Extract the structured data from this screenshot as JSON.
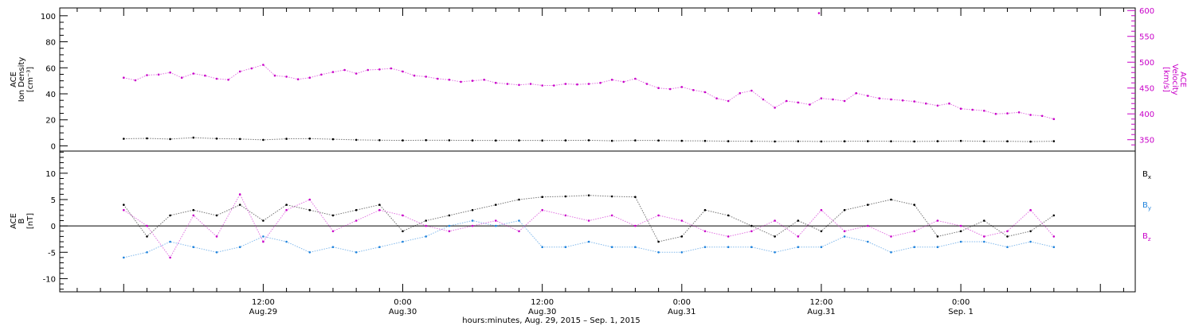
{
  "chart_data": [
    {
      "type": "scatter",
      "panel": "top",
      "ylabel_left": [
        "ACE",
        "Ion Density",
        "[cm⁻³]"
      ],
      "ylabel_right": [
        "ACE",
        "Velocity",
        "[km/s]"
      ],
      "ylim_left": [
        -4,
        106
      ],
      "ylim_right": [
        328,
        605
      ],
      "left_ticks": [
        "0",
        "20",
        "40",
        "60",
        "80",
        "100"
      ],
      "right_ticks": [
        "350",
        "400",
        "450",
        "500",
        "550",
        "600"
      ],
      "colors": {
        "density": "#000000",
        "velocity": "#c800c8"
      },
      "series": [
        {
          "name": "Ion Density",
          "axis": "left",
          "points": [
            [
              0,
              5.5
            ],
            [
              2,
              5.8
            ],
            [
              4,
              5.2
            ],
            [
              6,
              6.3
            ],
            [
              8,
              5.6
            ],
            [
              10,
              5.3
            ],
            [
              12,
              4.6
            ],
            [
              14,
              5.4
            ],
            [
              16,
              5.6
            ],
            [
              18,
              5.1
            ],
            [
              20,
              4.6
            ],
            [
              22,
              4.4
            ],
            [
              24,
              4.2
            ],
            [
              26,
              4.4
            ],
            [
              28,
              4.3
            ],
            [
              30,
              4.2
            ],
            [
              32,
              4.1
            ],
            [
              34,
              4.2
            ],
            [
              36,
              4.1
            ],
            [
              38,
              4.2
            ],
            [
              40,
              4.3
            ],
            [
              42,
              3.9
            ],
            [
              44,
              4.2
            ],
            [
              46,
              4.1
            ],
            [
              48,
              3.9
            ],
            [
              50,
              3.8
            ],
            [
              52,
              3.6
            ],
            [
              54,
              3.6
            ],
            [
              56,
              3.4
            ],
            [
              58,
              3.5
            ],
            [
              60,
              3.4
            ],
            [
              62,
              3.5
            ],
            [
              64,
              3.6
            ],
            [
              66,
              3.5
            ],
            [
              68,
              3.4
            ],
            [
              70,
              3.6
            ],
            [
              72,
              3.8
            ],
            [
              74,
              3.5
            ],
            [
              76,
              3.5
            ],
            [
              78,
              3.3
            ],
            [
              80,
              3.6
            ]
          ]
        },
        {
          "name": "Velocity",
          "axis": "right",
          "points": [
            [
              0,
              470
            ],
            [
              1,
              465
            ],
            [
              2,
              475
            ],
            [
              3,
              476
            ],
            [
              4,
              480
            ],
            [
              5,
              470
            ],
            [
              6,
              478
            ],
            [
              7,
              474
            ],
            [
              8,
              468
            ],
            [
              9,
              466
            ],
            [
              10,
              482
            ],
            [
              11,
              488
            ],
            [
              12,
              495
            ],
            [
              13,
              474
            ],
            [
              14,
              472
            ],
            [
              15,
              467
            ],
            [
              16,
              470
            ],
            [
              17,
              476
            ],
            [
              18,
              481
            ],
            [
              19,
              485
            ],
            [
              20,
              478
            ],
            [
              21,
              485
            ],
            [
              22,
              486
            ],
            [
              23,
              488
            ],
            [
              24,
              482
            ],
            [
              25,
              474
            ],
            [
              26,
              472
            ],
            [
              27,
              468
            ],
            [
              28,
              466
            ],
            [
              29,
              462
            ],
            [
              30,
              464
            ],
            [
              31,
              466
            ],
            [
              32,
              460
            ],
            [
              33,
              458
            ],
            [
              34,
              456
            ],
            [
              35,
              458
            ],
            [
              36,
              455
            ],
            [
              37,
              455
            ],
            [
              38,
              458
            ],
            [
              39,
              457
            ],
            [
              40,
              458
            ],
            [
              41,
              460
            ],
            [
              42,
              466
            ],
            [
              43,
              462
            ],
            [
              44,
              468
            ],
            [
              45,
              458
            ],
            [
              46,
              450
            ],
            [
              47,
              448
            ],
            [
              48,
              452
            ],
            [
              49,
              446
            ],
            [
              50,
              442
            ],
            [
              51,
              430
            ],
            [
              52,
              425
            ],
            [
              53,
              440
            ],
            [
              54,
              445
            ],
            [
              55,
              428
            ],
            [
              56,
              412
            ],
            [
              57,
              425
            ],
            [
              58,
              422
            ],
            [
              59,
              418
            ],
            [
              60,
              430
            ],
            [
              61,
              428
            ],
            [
              62,
              425
            ],
            [
              63,
              440
            ],
            [
              64,
              435
            ],
            [
              65,
              430
            ],
            [
              66,
              428
            ],
            [
              67,
              426
            ],
            [
              68,
              424
            ],
            [
              69,
              420
            ],
            [
              70,
              416
            ],
            [
              71,
              420
            ],
            [
              72,
              410
            ],
            [
              73,
              408
            ],
            [
              74,
              406
            ],
            [
              75,
              400
            ],
            [
              76,
              401
            ],
            [
              77,
              403
            ],
            [
              78,
              398
            ],
            [
              79,
              396
            ],
            [
              80,
              390
            ]
          ]
        }
      ],
      "annotations": [
        {
          "x": 59.8,
          "y": 595
        }
      ]
    },
    {
      "type": "scatter",
      "panel": "bottom",
      "ylabel": [
        "ACE",
        "B",
        "[nT]"
      ],
      "ylim": [
        -12.5,
        14.2
      ],
      "ticks": [
        "-10",
        "-5",
        "0",
        "5",
        "10"
      ],
      "legend": [
        {
          "main": "B",
          "sub": "x",
          "color": "#000000"
        },
        {
          "main": "B",
          "sub": "y",
          "color": "#1e82dc"
        },
        {
          "main": "B",
          "sub": "z",
          "color": "#c800c8"
        }
      ],
      "legend_position": "right",
      "series": [
        {
          "name": "Bx",
          "points": [
            [
              0,
              4
            ],
            [
              2,
              -2
            ],
            [
              4,
              2
            ],
            [
              6,
              3
            ],
            [
              8,
              2
            ],
            [
              10,
              4
            ],
            [
              12,
              1
            ],
            [
              14,
              4
            ],
            [
              16,
              3
            ],
            [
              18,
              2
            ],
            [
              20,
              3
            ],
            [
              22,
              4
            ],
            [
              24,
              -1
            ],
            [
              26,
              1
            ],
            [
              28,
              2
            ],
            [
              30,
              3
            ],
            [
              32,
              4
            ],
            [
              34,
              5
            ],
            [
              36,
              5.5
            ],
            [
              38,
              5.6
            ],
            [
              40,
              5.8
            ],
            [
              42,
              5.6
            ],
            [
              44,
              5.5
            ],
            [
              46,
              -3
            ],
            [
              48,
              -2
            ],
            [
              50,
              3
            ],
            [
              52,
              2
            ],
            [
              54,
              0
            ],
            [
              56,
              -2
            ],
            [
              58,
              1
            ],
            [
              60,
              -1
            ],
            [
              62,
              3
            ],
            [
              64,
              4
            ],
            [
              66,
              5
            ],
            [
              68,
              4
            ],
            [
              70,
              -2
            ],
            [
              72,
              -1
            ],
            [
              74,
              1
            ],
            [
              76,
              -2
            ],
            [
              78,
              -1
            ],
            [
              80,
              2
            ]
          ]
        },
        {
          "name": "By",
          "points": [
            [
              0,
              -6
            ],
            [
              2,
              -5
            ],
            [
              4,
              -3
            ],
            [
              6,
              -4
            ],
            [
              8,
              -5
            ],
            [
              10,
              -4
            ],
            [
              12,
              -2
            ],
            [
              14,
              -3
            ],
            [
              16,
              -5
            ],
            [
              18,
              -4
            ],
            [
              20,
              -5
            ],
            [
              22,
              -4
            ],
            [
              24,
              -3
            ],
            [
              26,
              -2
            ],
            [
              28,
              0
            ],
            [
              30,
              1
            ],
            [
              32,
              0
            ],
            [
              34,
              1
            ],
            [
              36,
              -4
            ],
            [
              38,
              -4
            ],
            [
              40,
              -3
            ],
            [
              42,
              -4
            ],
            [
              44,
              -4
            ],
            [
              46,
              -5
            ],
            [
              48,
              -5
            ],
            [
              50,
              -4
            ],
            [
              52,
              -4
            ],
            [
              54,
              -4
            ],
            [
              56,
              -5
            ],
            [
              58,
              -4
            ],
            [
              60,
              -4
            ],
            [
              62,
              -2
            ],
            [
              64,
              -3
            ],
            [
              66,
              -5
            ],
            [
              68,
              -4
            ],
            [
              70,
              -4
            ],
            [
              72,
              -3
            ],
            [
              74,
              -3
            ],
            [
              76,
              -4
            ],
            [
              78,
              -3
            ],
            [
              80,
              -4
            ]
          ]
        },
        {
          "name": "Bz",
          "points": [
            [
              0,
              3
            ],
            [
              2,
              0
            ],
            [
              4,
              -6
            ],
            [
              6,
              2
            ],
            [
              8,
              -2
            ],
            [
              10,
              6
            ],
            [
              12,
              -3
            ],
            [
              14,
              3
            ],
            [
              16,
              5
            ],
            [
              18,
              -1
            ],
            [
              20,
              1
            ],
            [
              22,
              3
            ],
            [
              24,
              2
            ],
            [
              26,
              0
            ],
            [
              28,
              -1
            ],
            [
              30,
              0
            ],
            [
              32,
              1
            ],
            [
              34,
              -1
            ],
            [
              36,
              3
            ],
            [
              38,
              2
            ],
            [
              40,
              1
            ],
            [
              42,
              2
            ],
            [
              44,
              0
            ],
            [
              46,
              2
            ],
            [
              48,
              1
            ],
            [
              50,
              -1
            ],
            [
              52,
              -2
            ],
            [
              54,
              -1
            ],
            [
              56,
              1
            ],
            [
              58,
              -2
            ],
            [
              60,
              3
            ],
            [
              62,
              -1
            ],
            [
              64,
              0
            ],
            [
              66,
              -2
            ],
            [
              68,
              -1
            ],
            [
              70,
              1
            ],
            [
              72,
              0
            ],
            [
              74,
              -2
            ],
            [
              76,
              -1
            ],
            [
              78,
              3
            ],
            [
              80,
              -2
            ]
          ]
        }
      ],
      "xlabel": "hours:minutes, Aug. 29, 2015 – Sep.  1, 2015",
      "xlim_hours": [
        -5.5,
        87
      ],
      "xticks": [
        {
          "hours": 12,
          "time": "12:00",
          "date": "Aug.29"
        },
        {
          "hours": 24,
          "time": "0:00",
          "date": "Aug.30"
        },
        {
          "hours": 36,
          "time": "12:00",
          "date": "Aug.30"
        },
        {
          "hours": 48,
          "time": "0:00",
          "date": "Aug.31"
        },
        {
          "hours": 60,
          "time": "12:00",
          "date": "Aug.31"
        },
        {
          "hours": 72,
          "time": "0:00",
          "date": "Sep. 1"
        }
      ],
      "grid": false
    }
  ]
}
